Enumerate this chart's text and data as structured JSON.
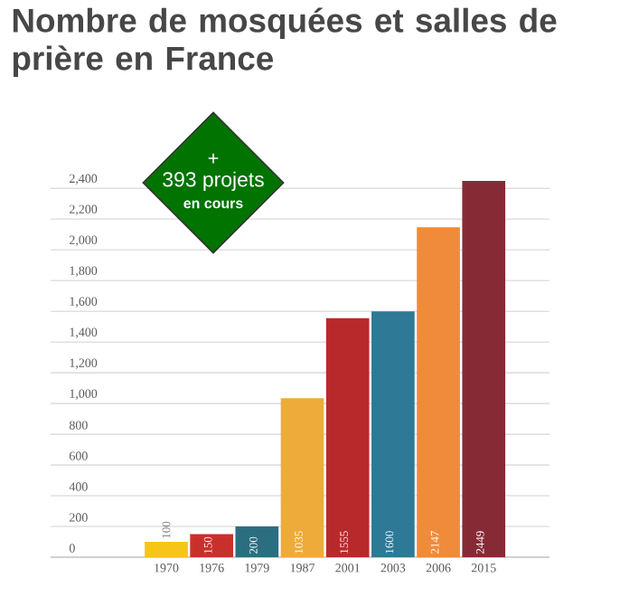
{
  "chart_data": {
    "type": "bar",
    "title": "Nombre de mosquées et salles de prière en France",
    "categories": [
      "1970",
      "1976",
      "1979",
      "1987",
      "2001",
      "2003",
      "2006",
      "2015"
    ],
    "values": [
      100,
      150,
      200,
      1035,
      1555,
      1600,
      2147,
      2449
    ],
    "value_labels": [
      "100",
      "150",
      "200",
      "1035",
      "1555",
      "1600",
      "2147",
      "2449"
    ],
    "colors": [
      "#f5c518",
      "#c9302c",
      "#2b6e80",
      "#eeab3a",
      "#b8292b",
      "#2e7996",
      "#ef8b3a",
      "#862a36"
    ],
    "yticks": [
      {
        "value": 0,
        "label": "0"
      },
      {
        "value": 200,
        "label": "200"
      },
      {
        "value": 400,
        "label": "400"
      },
      {
        "value": 600,
        "label": "600"
      },
      {
        "value": 800,
        "label": "800"
      },
      {
        "value": 1000,
        "label": "1,000"
      },
      {
        "value": 1200,
        "label": "1,200"
      },
      {
        "value": 1400,
        "label": "1,400"
      },
      {
        "value": 1600,
        "label": "1,600"
      },
      {
        "value": 1800,
        "label": "1,800"
      },
      {
        "value": 2000,
        "label": "2,000"
      },
      {
        "value": 2200,
        "label": "2,200"
      },
      {
        "value": 2400,
        "label": "2,400"
      }
    ],
    "ylim": [
      0,
      2449
    ],
    "grid": "y",
    "annotations": [
      "+",
      "393 projets",
      "en cours"
    ]
  }
}
